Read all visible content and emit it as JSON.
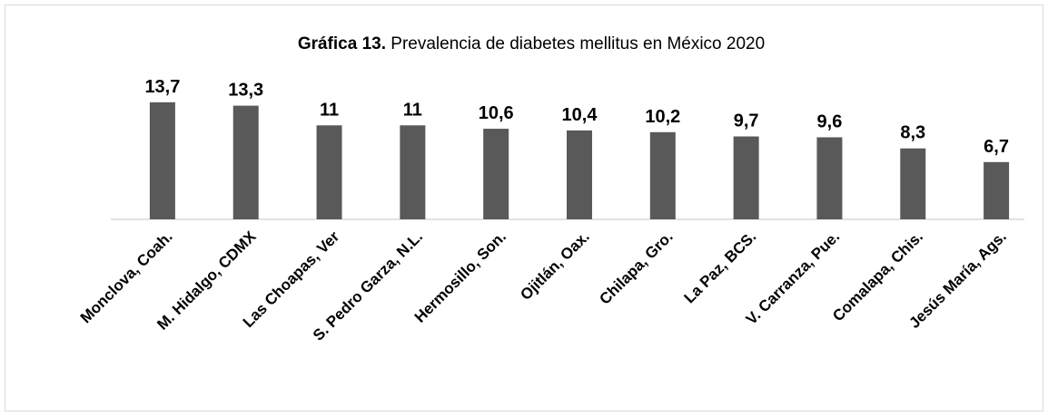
{
  "chart_data": {
    "type": "bar",
    "title_prefix": "Gráfica 13.",
    "title": "Prevalencia de diabetes mellitus en México 2020",
    "categories": [
      "Monclova, Coah.",
      "M. Hidalgo, CDMX",
      "Las Choapas, Ver",
      "S. Pedro Garza, N.L.",
      "Hermosillo, Son.",
      "Ojitlán, Oax.",
      "Chilapa, Gro.",
      "La Paz, BCS.",
      "V. Carranza, Pue.",
      "Comalapa, Chis.",
      "Jesús María, Ags."
    ],
    "values": [
      13.7,
      13.3,
      11,
      11,
      10.6,
      10.4,
      10.2,
      9.7,
      9.6,
      8.3,
      6.7
    ],
    "value_labels": [
      "13,7",
      "13,3",
      "11",
      "11",
      "10,6",
      "10,4",
      "10,2",
      "9,7",
      "9,6",
      "8,3",
      "6,7"
    ],
    "color": "#595959",
    "ylim": [
      0,
      14
    ]
  }
}
